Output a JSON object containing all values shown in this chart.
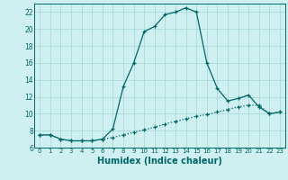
{
  "xlabel": "Humidex (Indice chaleur)",
  "bg_color": "#cef0f0",
  "line_color": "#006666",
  "grid_color": "#b0dede",
  "xlim": [
    -0.5,
    23.5
  ],
  "ylim": [
    6,
    23
  ],
  "yticks": [
    6,
    8,
    10,
    12,
    14,
    16,
    18,
    20,
    22
  ],
  "xticks": [
    0,
    1,
    2,
    3,
    4,
    5,
    6,
    7,
    8,
    9,
    10,
    11,
    12,
    13,
    14,
    15,
    16,
    17,
    18,
    19,
    20,
    21,
    22,
    23
  ],
  "line1_x": [
    0,
    1,
    2,
    3,
    4,
    5,
    6,
    7,
    8,
    9,
    10,
    11,
    12,
    13,
    14,
    15,
    16,
    17,
    18,
    19,
    20,
    21,
    22,
    23
  ],
  "line1_y": [
    7.5,
    7.5,
    7.0,
    6.8,
    6.8,
    6.8,
    7.0,
    8.2,
    13.2,
    16.0,
    19.7,
    20.3,
    21.7,
    22.0,
    22.5,
    22.0,
    16.0,
    13.0,
    11.5,
    11.8,
    12.2,
    10.8,
    10.0,
    10.2
  ],
  "line2_x": [
    0,
    1,
    2,
    3,
    4,
    5,
    6,
    7,
    8,
    9,
    10,
    11,
    12,
    13,
    14,
    15,
    16,
    17,
    18,
    19,
    20,
    21,
    22,
    23
  ],
  "line2_y": [
    7.5,
    7.5,
    7.0,
    6.8,
    6.8,
    6.8,
    7.0,
    7.2,
    7.5,
    7.8,
    8.1,
    8.4,
    8.8,
    9.1,
    9.4,
    9.7,
    9.9,
    10.2,
    10.5,
    10.8,
    11.0,
    11.0,
    10.0,
    10.2
  ]
}
